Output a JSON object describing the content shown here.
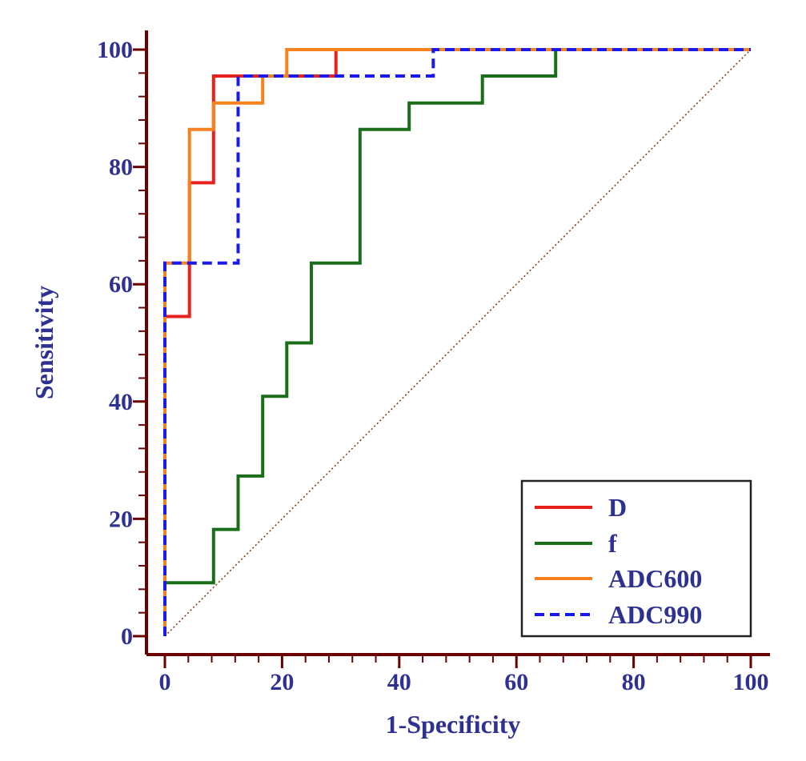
{
  "chart_data": {
    "type": "line",
    "title": "",
    "xlabel": "1-Specificity",
    "ylabel": "Sensitivity",
    "xlim": [
      0,
      100
    ],
    "ylim": [
      0,
      100
    ],
    "xticks": [
      0,
      20,
      40,
      60,
      80,
      100
    ],
    "yticks": [
      0,
      20,
      40,
      60,
      80,
      100
    ],
    "xtick_labels": [
      "0",
      "20",
      "40",
      "60",
      "80",
      "100"
    ],
    "ytick_labels": [
      "0",
      "20",
      "40",
      "60",
      "80",
      "100"
    ],
    "minor_tick_step": 4,
    "grid": false,
    "legend_position": "bottom-right",
    "reference_line": {
      "name": "chance",
      "from": [
        0,
        0
      ],
      "to": [
        100,
        100
      ],
      "color": "#8b3a1a"
    },
    "colors": {
      "axis": "#6b0000",
      "text": "#2e3192"
    },
    "series": [
      {
        "name": "D",
        "color": "#e8211d",
        "dash": "solid",
        "points": [
          [
            0,
            0
          ],
          [
            0,
            54.5
          ],
          [
            4.2,
            54.5
          ],
          [
            4.2,
            77.3
          ],
          [
            8.3,
            77.3
          ],
          [
            8.3,
            95.5
          ],
          [
            29.2,
            95.5
          ],
          [
            29.2,
            100
          ],
          [
            100,
            100
          ]
        ]
      },
      {
        "name": "f",
        "color": "#1a6e1a",
        "dash": "solid",
        "points": [
          [
            0,
            0
          ],
          [
            0,
            9.1
          ],
          [
            8.3,
            9.1
          ],
          [
            8.3,
            18.2
          ],
          [
            12.5,
            18.2
          ],
          [
            12.5,
            27.3
          ],
          [
            16.7,
            27.3
          ],
          [
            16.7,
            40.9
          ],
          [
            20.8,
            40.9
          ],
          [
            20.8,
            50
          ],
          [
            25,
            50
          ],
          [
            25,
            63.6
          ],
          [
            33.3,
            63.6
          ],
          [
            33.3,
            86.4
          ],
          [
            41.7,
            86.4
          ],
          [
            41.7,
            90.9
          ],
          [
            54.2,
            90.9
          ],
          [
            54.2,
            95.5
          ],
          [
            66.7,
            95.5
          ],
          [
            66.7,
            100
          ],
          [
            100,
            100
          ]
        ]
      },
      {
        "name": "ADC600",
        "color": "#f5821f",
        "dash": "solid",
        "points": [
          [
            0,
            0
          ],
          [
            0,
            63.6
          ],
          [
            4.2,
            63.6
          ],
          [
            4.2,
            86.4
          ],
          [
            8.3,
            86.4
          ],
          [
            8.3,
            90.9
          ],
          [
            16.7,
            90.9
          ],
          [
            16.7,
            95.5
          ],
          [
            20.8,
            95.5
          ],
          [
            20.8,
            100
          ],
          [
            100,
            100
          ]
        ]
      },
      {
        "name": "ADC990",
        "color": "#1a1aee",
        "dash": "dashed",
        "points": [
          [
            0,
            0
          ],
          [
            0,
            63.6
          ],
          [
            12.5,
            63.6
          ],
          [
            12.5,
            95.5
          ],
          [
            45.8,
            95.5
          ],
          [
            45.8,
            100
          ],
          [
            100,
            100
          ]
        ]
      }
    ]
  }
}
